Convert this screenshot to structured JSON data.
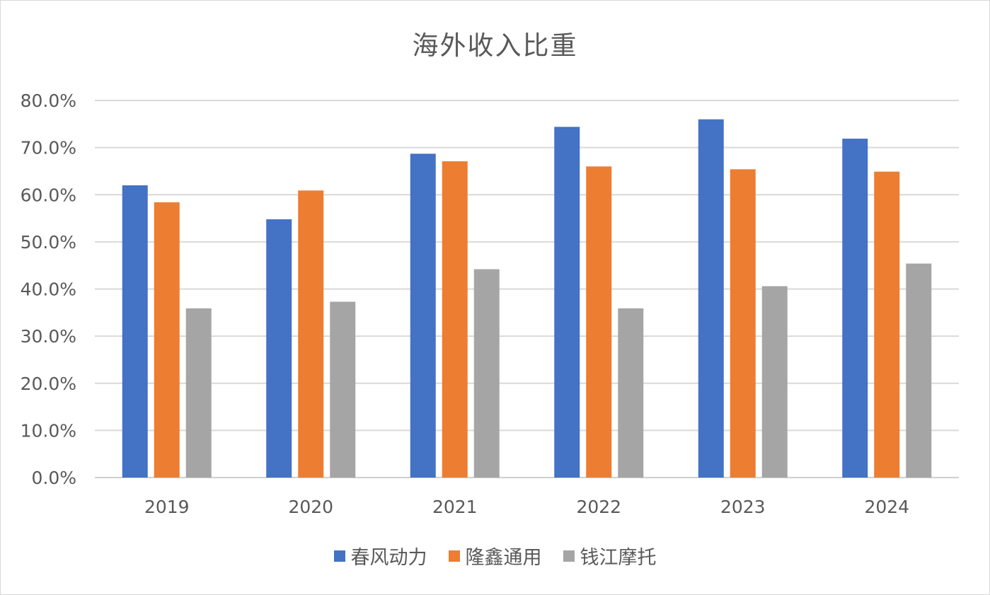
{
  "chart_data": {
    "type": "bar",
    "title": "海外收入比重",
    "xlabel": "",
    "ylabel": "",
    "categories": [
      "2019",
      "2020",
      "2021",
      "2022",
      "2023",
      "2024"
    ],
    "y_ticks": [
      "0.0%",
      "10.0%",
      "20.0%",
      "30.0%",
      "40.0%",
      "50.0%",
      "60.0%",
      "70.0%",
      "80.0%"
    ],
    "ylim": [
      0,
      80
    ],
    "y_unit": "%",
    "grid": true,
    "legend_position": "bottom",
    "series": [
      {
        "name": "春风动力",
        "color": "#4472C4",
        "values": [
          62.0,
          54.8,
          68.7,
          74.4,
          76.0,
          71.9
        ]
      },
      {
        "name": "隆鑫通用",
        "color": "#ED7D31",
        "values": [
          58.4,
          60.9,
          67.1,
          66.0,
          65.4,
          64.9
        ]
      },
      {
        "name": "钱江摩托",
        "color": "#A5A5A5",
        "values": [
          35.9,
          37.3,
          44.2,
          35.9,
          40.6,
          45.4
        ]
      }
    ]
  }
}
